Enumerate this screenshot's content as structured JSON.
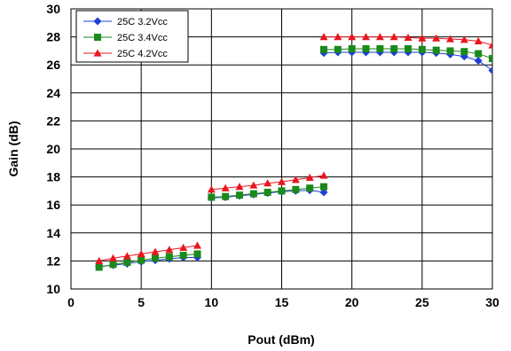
{
  "chart_data": {
    "type": "line",
    "xlabel": "Pout (dBm)",
    "ylabel": "Gain (dB)",
    "xlim": [
      0,
      30
    ],
    "ylim": [
      10,
      30
    ],
    "x_ticks": [
      "0",
      "5",
      "10",
      "15",
      "20",
      "25",
      "30"
    ],
    "y_ticks": [
      "10",
      "12",
      "14",
      "16",
      "18",
      "20",
      "22",
      "24",
      "26",
      "28",
      "30"
    ],
    "grid": true,
    "legend_position": "top-left",
    "series": [
      {
        "name": "25C 3.2Vcc",
        "color": "#1f3fd6",
        "marker": "diamond",
        "segments": [
          {
            "x": [
              2,
              3,
              4,
              5,
              6,
              7,
              8,
              9
            ],
            "y": [
              11.6,
              11.7,
              11.8,
              11.95,
              12.05,
              12.15,
              12.25,
              12.25
            ]
          },
          {
            "x": [
              10,
              11,
              12,
              13,
              14,
              15,
              16,
              17,
              18
            ],
            "y": [
              16.5,
              16.55,
              16.65,
              16.75,
              16.85,
              16.95,
              17.0,
              17.05,
              16.9
            ]
          },
          {
            "x": [
              18,
              19,
              20,
              21,
              22,
              23,
              24,
              25,
              26,
              27,
              28,
              29,
              30
            ],
            "y": [
              26.85,
              26.9,
              26.9,
              26.9,
              26.9,
              26.9,
              26.9,
              26.9,
              26.85,
              26.75,
              26.6,
              26.3,
              25.6
            ]
          }
        ]
      },
      {
        "name": "25C 3.4Vcc",
        "color": "#1a8a1a",
        "marker": "square",
        "segments": [
          {
            "x": [
              2,
              3,
              4,
              5,
              6,
              7,
              8,
              9
            ],
            "y": [
              11.55,
              11.75,
              11.9,
              12.05,
              12.2,
              12.3,
              12.4,
              12.5
            ]
          },
          {
            "x": [
              10,
              11,
              12,
              13,
              14,
              15,
              16,
              17,
              18
            ],
            "y": [
              16.55,
              16.6,
              16.7,
              16.8,
              16.9,
              17.0,
              17.1,
              17.2,
              17.3
            ]
          },
          {
            "x": [
              18,
              19,
              20,
              21,
              22,
              23,
              24,
              25,
              26,
              27,
              28,
              29,
              30
            ],
            "y": [
              27.1,
              27.1,
              27.15,
              27.15,
              27.15,
              27.15,
              27.15,
              27.1,
              27.05,
              27.0,
              26.95,
              26.8,
              26.45
            ]
          }
        ]
      },
      {
        "name": "25C 4.2Vcc",
        "color": "#e8161e",
        "marker": "triangle",
        "segments": [
          {
            "x": [
              2,
              3,
              4,
              5,
              6,
              7,
              8,
              9
            ],
            "y": [
              12.0,
              12.2,
              12.35,
              12.5,
              12.65,
              12.8,
              12.95,
              13.1
            ]
          },
          {
            "x": [
              10,
              11,
              12,
              13,
              14,
              15,
              16,
              17,
              18
            ],
            "y": [
              17.1,
              17.2,
              17.3,
              17.4,
              17.55,
              17.65,
              17.8,
              17.95,
              18.1
            ]
          },
          {
            "x": [
              18,
              19,
              20,
              21,
              22,
              23,
              24,
              25,
              26,
              27,
              28,
              29,
              30
            ],
            "y": [
              28.0,
              28.0,
              28.0,
              28.0,
              28.0,
              28.0,
              27.95,
              27.9,
              27.9,
              27.85,
              27.8,
              27.7,
              27.4
            ]
          }
        ]
      }
    ]
  }
}
